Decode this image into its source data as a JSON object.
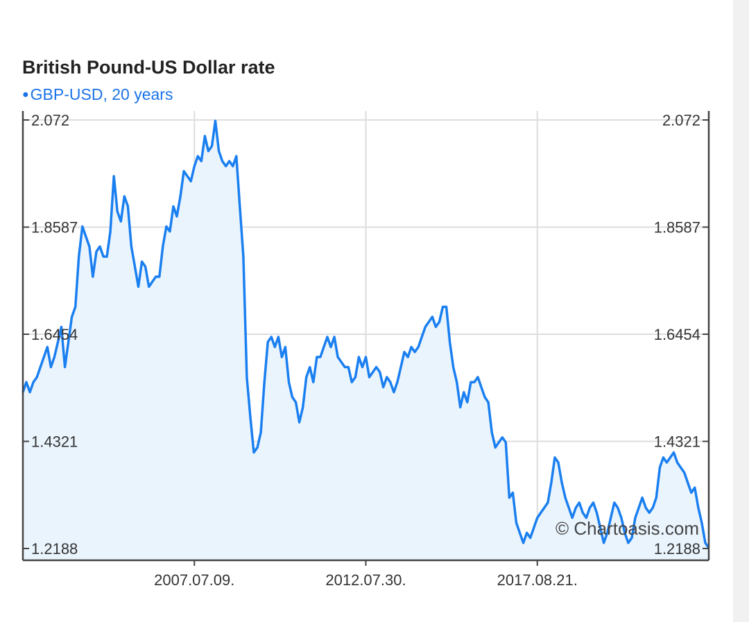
{
  "chart_data": {
    "type": "area",
    "title": "British Pound-US Dollar rate",
    "series_label": "GBP-USD, 20 years",
    "series": [
      {
        "name": "GBP-USD",
        "color": "#1a7ff0",
        "fill": "#eaf4fd",
        "values": [
          1.53,
          1.55,
          1.53,
          1.55,
          1.56,
          1.58,
          1.6,
          1.62,
          1.58,
          1.6,
          1.63,
          1.66,
          1.58,
          1.63,
          1.68,
          1.7,
          1.8,
          1.86,
          1.84,
          1.82,
          1.76,
          1.81,
          1.82,
          1.8,
          1.8,
          1.85,
          1.96,
          1.89,
          1.87,
          1.92,
          1.9,
          1.82,
          1.78,
          1.74,
          1.79,
          1.78,
          1.74,
          1.75,
          1.76,
          1.76,
          1.82,
          1.86,
          1.85,
          1.9,
          1.88,
          1.92,
          1.97,
          1.96,
          1.95,
          1.98,
          2.0,
          1.99,
          2.04,
          2.01,
          2.02,
          2.07,
          2.01,
          1.99,
          1.98,
          1.99,
          1.98,
          2.0,
          1.9,
          1.8,
          1.56,
          1.48,
          1.41,
          1.42,
          1.45,
          1.55,
          1.63,
          1.64,
          1.62,
          1.64,
          1.6,
          1.62,
          1.55,
          1.52,
          1.51,
          1.47,
          1.5,
          1.56,
          1.58,
          1.55,
          1.6,
          1.6,
          1.62,
          1.64,
          1.62,
          1.64,
          1.6,
          1.59,
          1.58,
          1.58,
          1.55,
          1.56,
          1.6,
          1.58,
          1.6,
          1.56,
          1.57,
          1.58,
          1.57,
          1.54,
          1.56,
          1.55,
          1.53,
          1.55,
          1.58,
          1.61,
          1.6,
          1.62,
          1.61,
          1.62,
          1.64,
          1.66,
          1.67,
          1.68,
          1.66,
          1.67,
          1.7,
          1.7,
          1.63,
          1.58,
          1.55,
          1.5,
          1.53,
          1.51,
          1.55,
          1.55,
          1.56,
          1.54,
          1.52,
          1.51,
          1.45,
          1.42,
          1.43,
          1.44,
          1.43,
          1.32,
          1.33,
          1.27,
          1.25,
          1.23,
          1.25,
          1.24,
          1.26,
          1.28,
          1.29,
          1.3,
          1.31,
          1.35,
          1.4,
          1.39,
          1.35,
          1.32,
          1.3,
          1.28,
          1.3,
          1.31,
          1.29,
          1.28,
          1.3,
          1.31,
          1.29,
          1.26,
          1.23,
          1.25,
          1.28,
          1.31,
          1.3,
          1.28,
          1.25,
          1.23,
          1.24,
          1.28,
          1.3,
          1.32,
          1.3,
          1.29,
          1.3,
          1.32,
          1.38,
          1.4,
          1.39,
          1.4,
          1.41,
          1.39,
          1.38,
          1.37,
          1.35,
          1.33,
          1.34,
          1.3,
          1.27,
          1.23,
          1.22
        ]
      }
    ],
    "ylim": [
      1.2188,
      2.072
    ],
    "y_ticks": [
      "1.2188",
      "1.4321",
      "1.6454",
      "1.8587",
      "2.072"
    ],
    "x_tick_labels": [
      "2007.07.09.",
      "2012.07.30.",
      "2017.08.21."
    ],
    "x_tick_positions": [
      0.25,
      0.5,
      0.75
    ],
    "grid": true,
    "watermark": "© Chartoasis.com"
  }
}
